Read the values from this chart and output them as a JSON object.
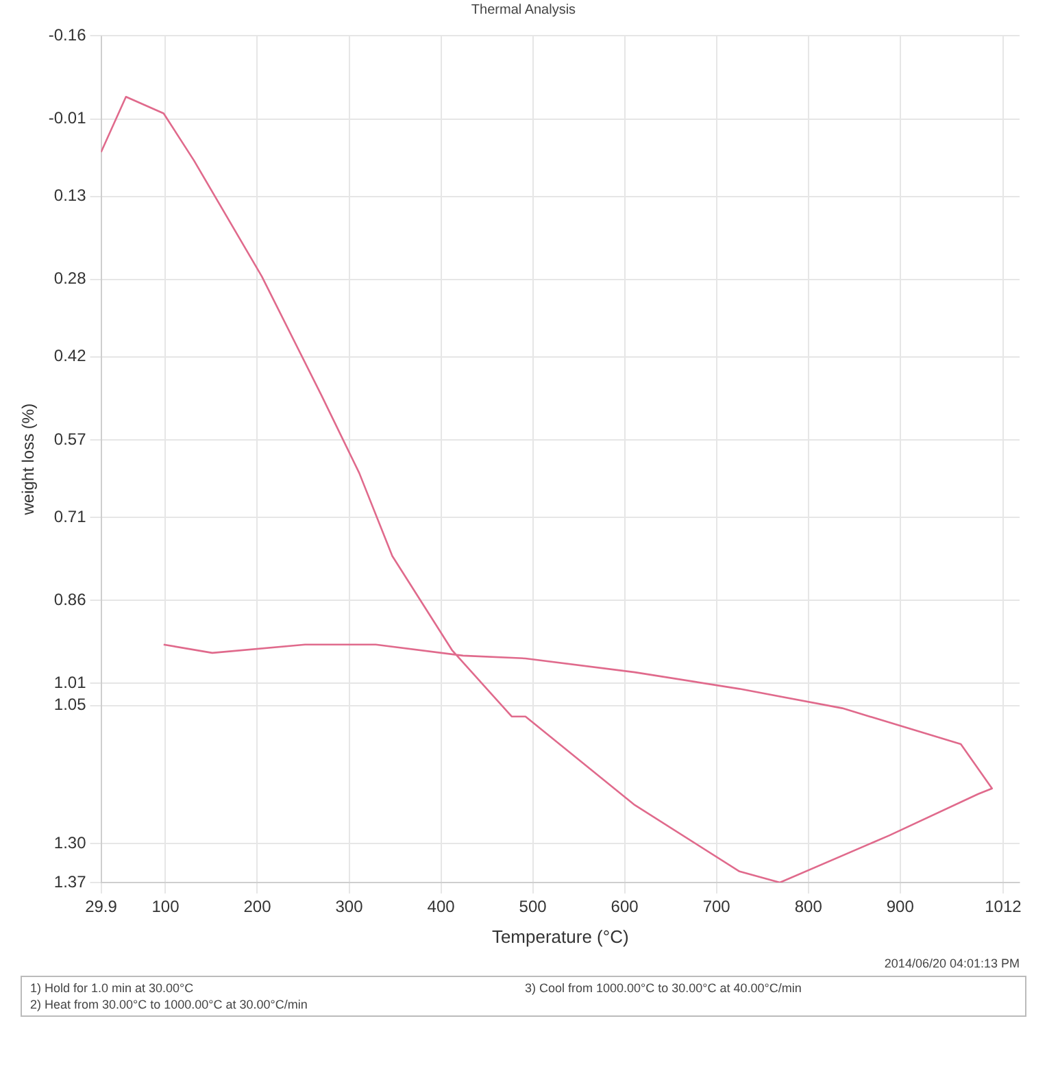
{
  "chart_data": {
    "type": "line",
    "title": "Thermal Analysis",
    "xlabel": "Temperature (°C)",
    "ylabel": "weight loss (%)",
    "x": [
      29.9,
      57,
      98,
      131,
      205,
      270,
      311,
      347,
      412,
      477,
      492,
      611,
      725,
      769,
      888,
      985,
      1000,
      966,
      837,
      725,
      611,
      492,
      424,
      329,
      252,
      151,
      98
    ],
    "series": [
      {
        "color": "#e06a8c",
        "values": [
          0.05,
          -0.05,
          -0.02,
          0.065,
          0.275,
          0.49,
          0.63,
          0.78,
          0.95,
          1.07,
          1.07,
          1.23,
          1.35,
          1.37,
          1.285,
          1.21,
          1.2,
          1.12,
          1.055,
          1.02,
          0.99,
          0.965,
          0.96,
          0.94,
          0.94,
          0.955,
          0.94
        ]
      }
    ],
    "xlim": [
      29.9,
      1030
    ],
    "xticks": [
      29.9,
      100,
      200,
      300,
      400,
      500,
      600,
      700,
      800,
      900,
      1012
    ],
    "ylim": [
      1.37,
      -0.16
    ],
    "yticks": [
      -0.16,
      -0.01,
      0.13,
      0.28,
      0.42,
      0.57,
      0.71,
      0.86,
      1.01,
      1.05,
      {
        "value": 1.3,
        "label": "1.30"
      },
      1.37
    ],
    "grid": true,
    "legend": false,
    "marker": "none",
    "line_style": "solid",
    "annotations": [
      "2014/06/20 04:01:13 PM",
      "1) Hold for 1.0 min at 30.00°C",
      "2) Heat from 30.00°C to 1000.00°C at 30.00°C/min",
      "3) Cool from 1000.00°C to 30.00°C at 40.00°C/min"
    ]
  }
}
